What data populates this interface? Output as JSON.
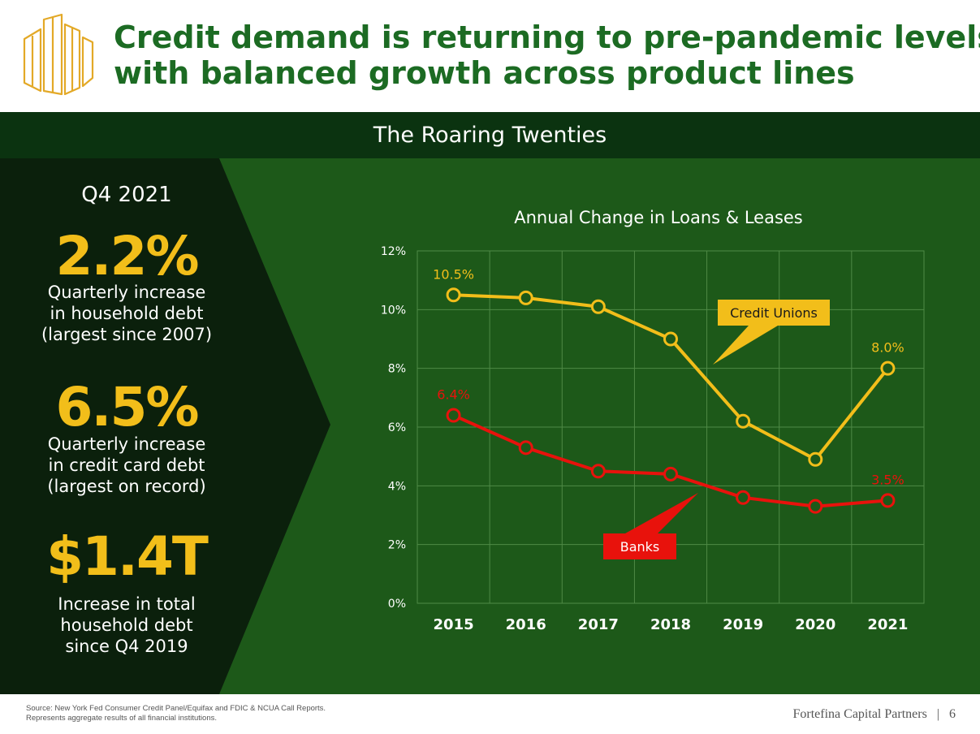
{
  "header": {
    "headline_line1": "Credit demand is returning to pre-pandemic levels",
    "headline_line2": "with balanced growth across product lines",
    "logo_icon": "buildings-outline-icon"
  },
  "banner": {
    "title": "The Roaring Twenties"
  },
  "stats": {
    "period": "Q4 2021",
    "items": [
      {
        "value": "2.2%",
        "line1": "Quarterly increase",
        "line2": "in household debt",
        "line3": "(largest since 2007)"
      },
      {
        "value": "6.5%",
        "line1": "Quarterly increase",
        "line2": "in credit card debt",
        "line3": "(largest on record)"
      },
      {
        "value": "$1.4T",
        "line1": "Increase in total",
        "line2": "household debt",
        "line3": "since Q4 2019"
      }
    ]
  },
  "chart_data": {
    "type": "line",
    "title": "Annual Change in Loans & Leases",
    "x": [
      "2015",
      "2016",
      "2017",
      "2018",
      "2019",
      "2020",
      "2021"
    ],
    "ylim": [
      0,
      12
    ],
    "yticks": [
      "0%",
      "2%",
      "4%",
      "6%",
      "8%",
      "10%",
      "12%"
    ],
    "grid": true,
    "series": [
      {
        "name": "Credit Unions",
        "values": [
          10.5,
          10.4,
          10.1,
          9.0,
          6.2,
          4.9,
          8.0
        ],
        "color": "#f2be1a"
      },
      {
        "name": "Banks",
        "values": [
          6.4,
          5.3,
          4.5,
          4.4,
          3.6,
          3.3,
          3.5
        ],
        "color": "#e8120c"
      }
    ],
    "data_labels": [
      {
        "series": 0,
        "index": 0,
        "text": "10.5%"
      },
      {
        "series": 0,
        "index": 6,
        "text": "8.0%"
      },
      {
        "series": 1,
        "index": 0,
        "text": "6.4%"
      },
      {
        "series": 1,
        "index": 6,
        "text": "3.5%"
      }
    ],
    "callouts": [
      {
        "series": 0,
        "text": "Credit Unions"
      },
      {
        "series": 1,
        "text": "Banks"
      }
    ]
  },
  "footer": {
    "source_line1": "Source: New York Fed Consumer Credit Panel/Equifax and FDIC & NCUA Call Reports.",
    "source_line2": "Represents aggregate results of all financial institutions.",
    "brand": "Fortefina Capital Partners",
    "separator": "|",
    "page_number": "6"
  },
  "colors": {
    "headline": "#1c6b23",
    "banner_bg": "#0b3310",
    "panel_bg": "#0b200c",
    "main_bg": "#1d5919",
    "accent_gold": "#f2be1a",
    "accent_red": "#e8120c"
  }
}
